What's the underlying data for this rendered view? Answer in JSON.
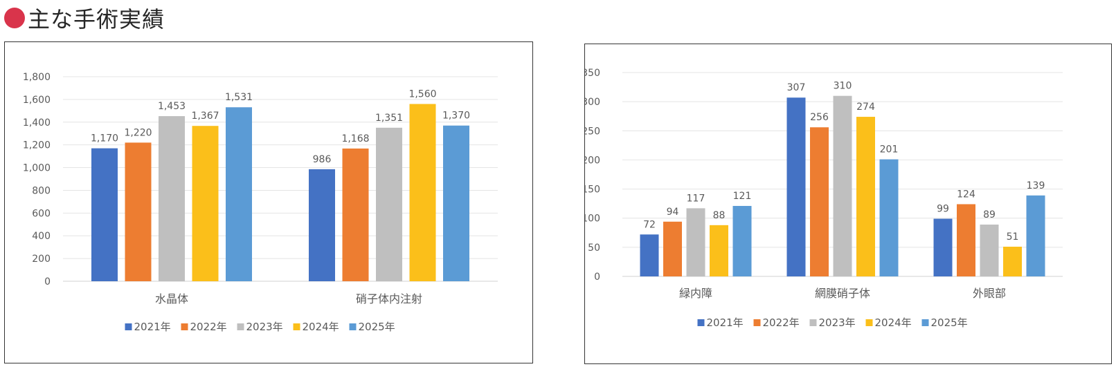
{
  "page": {
    "title": "主な手術実績",
    "accent_color": "#d9344b"
  },
  "chart_data": [
    {
      "type": "bar",
      "categories": [
        "水晶体",
        "硝子体内注射"
      ],
      "series": [
        {
          "name": "2021年",
          "color": "#4472c4",
          "values": [
            1170,
            986
          ]
        },
        {
          "name": "2022年",
          "color": "#ed7d31",
          "values": [
            1220,
            1168
          ]
        },
        {
          "name": "2023年",
          "color": "#bfbfbf",
          "values": [
            1453,
            1351
          ]
        },
        {
          "name": "2024年",
          "color": "#fbbf1a",
          "values": [
            1367,
            1560
          ]
        },
        {
          "name": "2025年",
          "color": "#5b9bd5",
          "values": [
            1531,
            1370
          ]
        }
      ],
      "yticks": [
        "0",
        "200",
        "400",
        "600",
        "800",
        "1,000",
        "1,200",
        "1,400",
        "1,600",
        "1,800"
      ],
      "data_labels": [
        [
          "1,170",
          "986"
        ],
        [
          "1,220",
          "1,168"
        ],
        [
          "1,453",
          "1,351"
        ],
        [
          "1,367",
          "1,560"
        ],
        [
          "1,531",
          "1,370"
        ]
      ],
      "ylim": [
        0,
        1800
      ],
      "grid": true,
      "legend": "bottom"
    },
    {
      "type": "bar",
      "categories": [
        "緑内障",
        "網膜硝子体",
        "外眼部"
      ],
      "series": [
        {
          "name": "2021年",
          "color": "#4472c4",
          "values": [
            72,
            307,
            99
          ]
        },
        {
          "name": "2022年",
          "color": "#ed7d31",
          "values": [
            94,
            256,
            124
          ]
        },
        {
          "name": "2023年",
          "color": "#bfbfbf",
          "values": [
            117,
            310,
            89
          ]
        },
        {
          "name": "2024年",
          "color": "#fbbf1a",
          "values": [
            88,
            274,
            51
          ]
        },
        {
          "name": "2025年",
          "color": "#5b9bd5",
          "values": [
            121,
            201,
            139
          ]
        }
      ],
      "yticks": [
        "0",
        "50",
        "100",
        "150",
        "200",
        "250",
        "300",
        "350"
      ],
      "data_labels": [
        [
          "72",
          "307",
          "99"
        ],
        [
          "94",
          "256",
          "124"
        ],
        [
          "117",
          "310",
          "89"
        ],
        [
          "88",
          "274",
          "51"
        ],
        [
          "121",
          "201",
          "139"
        ]
      ],
      "ylim": [
        0,
        350
      ],
      "grid": true,
      "legend": "bottom"
    }
  ]
}
